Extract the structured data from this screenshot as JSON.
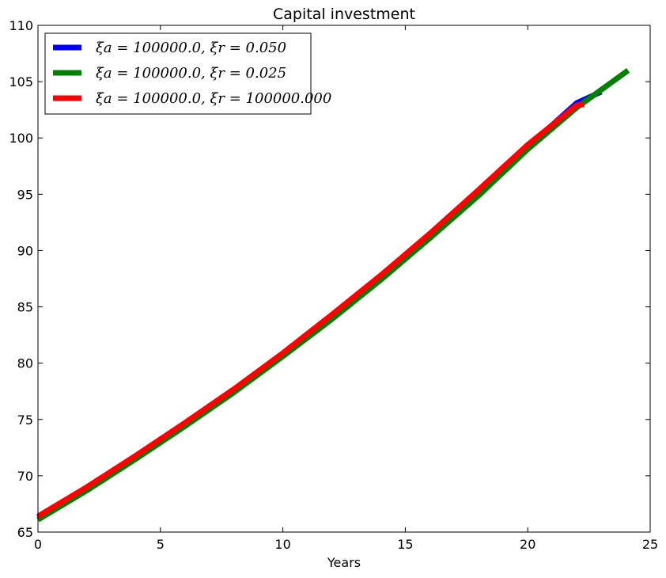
{
  "chart_data": {
    "type": "line",
    "title": "Capital investment",
    "xlabel": "Years",
    "ylabel": "",
    "xlim": [
      0,
      25
    ],
    "ylim": [
      65,
      110
    ],
    "xticks": [
      0,
      5,
      10,
      15,
      20,
      25
    ],
    "yticks": [
      65,
      70,
      75,
      80,
      85,
      90,
      95,
      100,
      105,
      110
    ],
    "grid": false,
    "legend_position": "top-left",
    "series": [
      {
        "name": "ξa = 100000.0, ξr = 0.050",
        "color": "#0000ff",
        "x": [
          0,
          2,
          4,
          6,
          8,
          10,
          12,
          14,
          16,
          18,
          20,
          22,
          23
        ],
        "y": [
          66.3,
          68.9,
          71.7,
          74.6,
          77.6,
          80.8,
          84.1,
          87.6,
          91.3,
          95.2,
          99.2,
          103.1,
          104.1
        ]
      },
      {
        "name": "ξa = 100000.0, ξr = 0.025",
        "color": "#008000",
        "x": [
          0,
          2,
          4,
          6,
          8,
          10,
          12,
          14,
          16,
          18,
          20,
          22,
          24.1
        ],
        "y": [
          66.1,
          68.7,
          71.5,
          74.4,
          77.4,
          80.6,
          83.9,
          87.4,
          91.1,
          94.9,
          99.0,
          102.7,
          106.0
        ]
      },
      {
        "name": "ξa = 100000.0, ξr = 100000.000",
        "color": "#ff0000",
        "x": [
          0,
          2,
          4,
          6,
          8,
          10,
          12,
          14,
          16,
          18,
          20,
          22,
          22.3
        ],
        "y": [
          66.4,
          69.0,
          71.8,
          74.7,
          77.7,
          80.9,
          84.3,
          87.8,
          91.5,
          95.4,
          99.4,
          102.9,
          103.0
        ]
      }
    ]
  }
}
